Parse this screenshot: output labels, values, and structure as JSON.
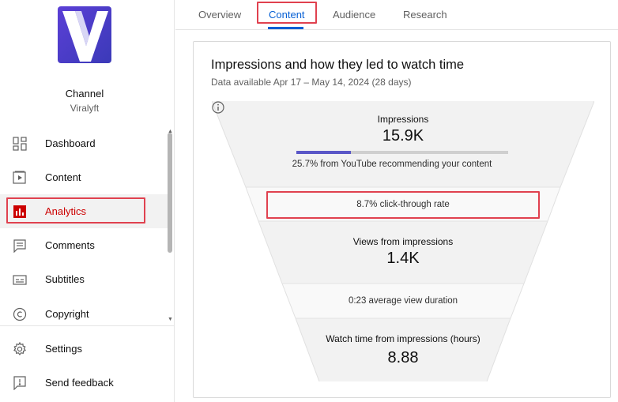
{
  "sidebar": {
    "channel_title": "Channel",
    "channel_name": "Viralyft",
    "items": [
      {
        "label": "Dashboard",
        "icon": "dashboard-icon"
      },
      {
        "label": "Content",
        "icon": "content-icon"
      },
      {
        "label": "Analytics",
        "icon": "analytics-icon",
        "active": true
      },
      {
        "label": "Comments",
        "icon": "comments-icon"
      },
      {
        "label": "Subtitles",
        "icon": "subtitles-icon"
      },
      {
        "label": "Copyright",
        "icon": "copyright-icon"
      }
    ],
    "bottom_items": [
      {
        "label": "Settings",
        "icon": "gear-icon"
      },
      {
        "label": "Send feedback",
        "icon": "feedback-icon"
      }
    ]
  },
  "tabs": [
    {
      "label": "Overview"
    },
    {
      "label": "Content",
      "active": true
    },
    {
      "label": "Audience"
    },
    {
      "label": "Research"
    }
  ],
  "card": {
    "title": "Impressions and how they led to watch time",
    "subtitle": "Data available Apr 17 – May 14, 2024 (28 days)"
  },
  "funnel": {
    "impressions_label": "Impressions",
    "impressions_value": "15.9K",
    "recommend_text": "25.7% from YouTube recommending your content",
    "recommend_fraction": 0.257,
    "ctr_text": "8.7% click-through rate",
    "views_label": "Views from impressions",
    "views_value": "1.4K",
    "avg_duration_text": "0:23 average view duration",
    "watch_label": "Watch time from impressions (hours)",
    "watch_value": "8.88"
  },
  "colors": {
    "accent_blue": "#065fd4",
    "active_red": "#cc0000",
    "highlight": "#e0414f",
    "bar_fill": "#5a57c7",
    "logo": "#4a3fc9"
  }
}
